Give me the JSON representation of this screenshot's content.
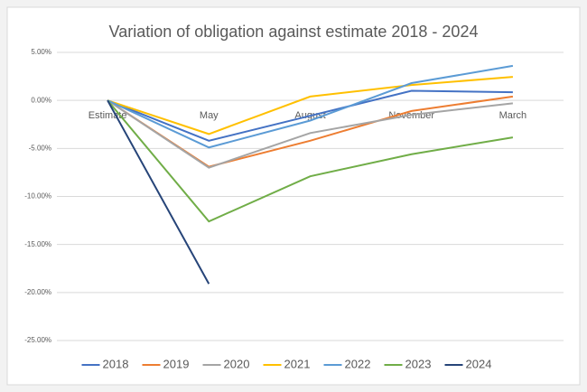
{
  "chart_data": {
    "type": "line",
    "title": "Variation of obligation against estimate 2018 - 2024",
    "categories": [
      "Estimate",
      "May",
      "August",
      "November",
      "March"
    ],
    "ylim": [
      -25,
      5
    ],
    "yticks": [
      {
        "value": -25,
        "label": "-25.00%"
      },
      {
        "value": -20,
        "label": "-20.00%"
      },
      {
        "value": -15,
        "label": "-15.00%"
      },
      {
        "value": -10,
        "label": "-10.00%"
      },
      {
        "value": -5,
        "label": "-5.00%"
      },
      {
        "value": 0,
        "label": "0.00%"
      },
      {
        "value": 5,
        "label": "5.00%"
      }
    ],
    "grid": true,
    "legend": "bottom",
    "series": [
      {
        "name": "2018",
        "color": "#4472c4",
        "values": [
          0,
          -4.2,
          -1.6,
          1.0,
          0.85
        ]
      },
      {
        "name": "2019",
        "color": "#ed7d31",
        "values": [
          0,
          -6.9,
          -4.2,
          -1.1,
          0.4
        ]
      },
      {
        "name": "2020",
        "color": "#a5a5a5",
        "values": [
          0,
          -7.0,
          -3.4,
          -1.5,
          -0.3
        ]
      },
      {
        "name": "2021",
        "color": "#ffc000",
        "values": [
          0,
          -3.5,
          0.4,
          1.6,
          2.45
        ]
      },
      {
        "name": "2022",
        "color": "#5b9bd5",
        "values": [
          0,
          -4.9,
          -2.1,
          1.8,
          3.6
        ]
      },
      {
        "name": "2023",
        "color": "#70ad47",
        "values": [
          0,
          -12.6,
          -7.9,
          -5.6,
          -3.85
        ]
      },
      {
        "name": "2024",
        "color": "#264478",
        "values": [
          0,
          -19.1,
          null,
          null,
          null
        ]
      }
    ]
  }
}
